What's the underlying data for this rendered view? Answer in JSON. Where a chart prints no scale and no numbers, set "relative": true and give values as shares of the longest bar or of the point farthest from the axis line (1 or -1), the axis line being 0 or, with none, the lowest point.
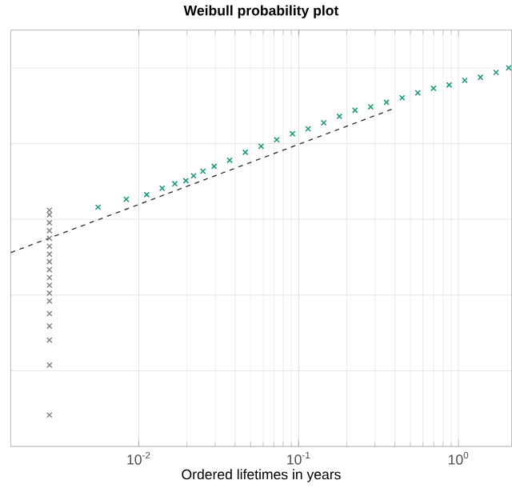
{
  "chart_data": {
    "type": "scatter",
    "title": "Weibull probability plot",
    "xlabel": "Ordered lifetimes in years",
    "log": "x",
    "relative": true,
    "grid": true,
    "marker": "cross",
    "tick_labels": "x",
    "xlim": [
      0.00158,
      2.15
    ],
    "xticks": [
      {
        "value": 0.01,
        "label": "10$^{-2}$"
      },
      {
        "value": 0.1,
        "label": "10$^{-1}$"
      },
      {
        "value": 1,
        "label": "10$^{0}$"
      }
    ],
    "series": [
      {
        "color": "#1a9a7a",
        "x": [
          0.00556,
          0.00835,
          0.0112,
          0.014,
          0.0168,
          0.0197,
          0.022,
          0.0252,
          0.0296,
          0.037,
          0.0464,
          0.0582,
          0.0729,
          0.0914,
          0.1146,
          0.1435,
          0.18,
          0.225,
          0.282,
          0.354,
          0.444,
          0.556,
          0.697,
          0.873,
          1.094,
          1.371,
          1.718,
          2.06
        ],
        "values": [
          0.632,
          0.653,
          0.665,
          0.682,
          0.694,
          0.702,
          0.715,
          0.727,
          0.74,
          0.756,
          0.777,
          0.793,
          0.81,
          0.826,
          0.839,
          0.855,
          0.872,
          0.888,
          0.897,
          0.909,
          0.921,
          0.934,
          0.946,
          0.955,
          0.967,
          0.975,
          0.988,
          1
        ]
      },
      {
        "color": "#888888",
        "x": [
          0.00276,
          0.00276,
          0.00276,
          0.00276,
          0.00276,
          0.00276,
          0.00276,
          0.00276,
          0.00276,
          0.00276,
          0.00276,
          0.00276,
          0.00276,
          0.00276,
          0.00276,
          0.00276,
          0.00276,
          0.00276
        ],
        "values": [
          0.083,
          0.215,
          0.281,
          0.318,
          0.351,
          0.384,
          0.405,
          0.426,
          0.446,
          0.467,
          0.488,
          0.508,
          0.529,
          0.55,
          0.57,
          0.591,
          0.612,
          0.624
        ]
      },
      {
        "type": "line",
        "line_style": "dashed",
        "marker": "none",
        "color": "#333333",
        "x": [
          0.00158,
          0.396
        ],
        "values": [
          0.512,
          0.893
        ]
      }
    ]
  }
}
